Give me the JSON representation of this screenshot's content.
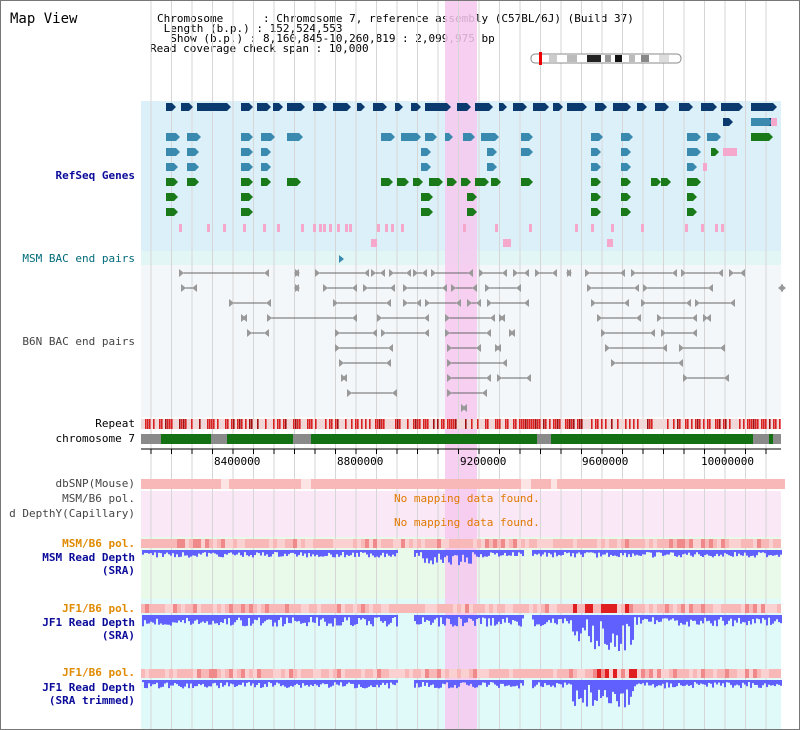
{
  "header": {
    "title": "Map View",
    "info": [
      {
        "label": "Chromosome",
        "sep": ":",
        "value": "Chromosome 7, reference assembly (C57BL/6J) (Build 37)"
      },
      {
        "label": "Length (b.p.)",
        "sep": ":",
        "value": "152,524,553"
      },
      {
        "label": "Show (b.p.)",
        "sep": ":",
        "value": "8,160,845-10,260,819 : 2,099,975 bp"
      },
      {
        "label": "Read coverage check span",
        "sep": ":",
        "value": "10,000"
      }
    ]
  },
  "tracks": {
    "refseq": "RefSeq Genes",
    "msm_bac": "MSM BAC end pairs",
    "b6n_bac": "B6N BAC end pairs",
    "repeat": "Repeat",
    "chromosome": "chromosome 7",
    "dbsnp": "dbSNP(Mouse)",
    "msm_b6_pol_1": "MSM/B6 pol.",
    "depth_capillary": "d DepthY(Capillary)",
    "msm_b6_pol_2": "MSM/B6 pol.",
    "msm_read_depth": "MSM Read Depth",
    "msm_read_depth_sub": "(SRA)",
    "jf1_b6_pol_1": "JF1/B6 pol.",
    "jf1_read_depth": "JF1 Read Depth",
    "jf1_read_depth_sub": "(SRA)",
    "jf1_b6_pol_2": "JF1/B6 pol.",
    "jf1_read_depth_trim": "JF1 Read Depth",
    "jf1_read_depth_trim_sub": "(SRA trimmed)"
  },
  "messages": {
    "no_data_1": "No mapping data found.",
    "no_data_2": "No mapping data found."
  },
  "axis": {
    "ticks": [
      "8400000",
      "8800000",
      "9200000",
      "9600000",
      "10000000"
    ]
  },
  "colors": {
    "refseq_bg": "#dcf0fa",
    "gene_navy": "#0b3a6e",
    "gene_steel": "#3a8ab0",
    "gene_green": "#1a7a1a",
    "gene_pink": "#f5a8cc",
    "highlight": "#f6c8ee",
    "repeat_red": "#d82020",
    "chrom_green": "#137013",
    "depth_blue": "#6060ff",
    "pol_pink": "#f8b8b8",
    "pol_red": "#e02020"
  }
}
